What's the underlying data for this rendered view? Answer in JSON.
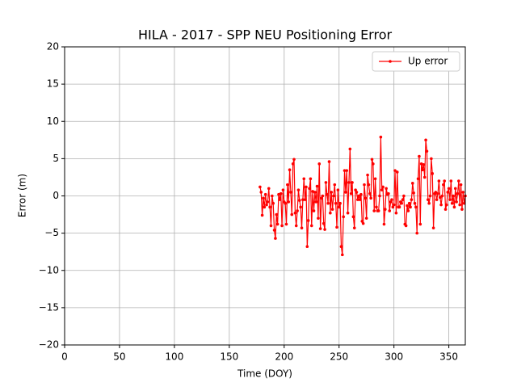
{
  "chart_data": {
    "type": "line",
    "title": "HILA - 2017 - SPP NEU Positioning Error",
    "xlabel": "Time (DOY)",
    "ylabel": "Error (m)",
    "xlim": [
      0,
      365
    ],
    "ylim": [
      -20,
      20
    ],
    "xticks": [
      0,
      50,
      100,
      150,
      200,
      250,
      300,
      350
    ],
    "yticks": [
      {
        "value": -20,
        "label": "−20"
      },
      {
        "value": -15,
        "label": "−15"
      },
      {
        "value": -10,
        "label": "−10"
      },
      {
        "value": -5,
        "label": "−5"
      },
      0,
      5,
      10,
      15,
      20
    ],
    "grid": true,
    "legend": "upper right",
    "series": [
      {
        "name": "Up error",
        "color": "#ff0000",
        "x": [
          178,
          179,
          180,
          181,
          182,
          183,
          184,
          185,
          186,
          187,
          188,
          189,
          190,
          191,
          192,
          193,
          194,
          195,
          196,
          197,
          198,
          199,
          200,
          201,
          202,
          203,
          204,
          205,
          206,
          207,
          208,
          209,
          210,
          211,
          212,
          213,
          214,
          215,
          216,
          217,
          218,
          219,
          220,
          221,
          222,
          223,
          224,
          225,
          226,
          227,
          228,
          229,
          230,
          231,
          232,
          233,
          234,
          235,
          236,
          237,
          238,
          239,
          240,
          241,
          242,
          243,
          244,
          245,
          246,
          247,
          248,
          249,
          250,
          251,
          252,
          253,
          254,
          255,
          256,
          257,
          258,
          259,
          260,
          261,
          262,
          263,
          264,
          265,
          266,
          267,
          268,
          269,
          270,
          271,
          272,
          273,
          274,
          275,
          276,
          277,
          278,
          279,
          280,
          281,
          282,
          283,
          284,
          285,
          286,
          287,
          288,
          289,
          290,
          291,
          292,
          293,
          294,
          295,
          296,
          297,
          298,
          299,
          300,
          301,
          302,
          303,
          304,
          305,
          306,
          307,
          308,
          309,
          310,
          311,
          312,
          313,
          314,
          315,
          316,
          317,
          318,
          319,
          320,
          321,
          322,
          323,
          324,
          325,
          326,
          327,
          328,
          329,
          330,
          331,
          332,
          333,
          334,
          335,
          336,
          337,
          338,
          339,
          340,
          341,
          342,
          343,
          344,
          345,
          346,
          347,
          348,
          349,
          350,
          351,
          352,
          353,
          354,
          355,
          356,
          357,
          358,
          359,
          360,
          361,
          362,
          363,
          364,
          365
        ],
        "values": [
          1.2,
          0.5,
          -2.6,
          -0.3,
          -1.5,
          0.2,
          -1.2,
          -0.8,
          1.0,
          -1.5,
          -4.0,
          0.0,
          -1.0,
          -4.6,
          -5.7,
          -2.5,
          -3.8,
          0.2,
          -0.5,
          0.3,
          -4.0,
          0.8,
          -0.8,
          -1.0,
          -3.8,
          1.5,
          -0.8,
          3.5,
          0.5,
          -2.5,
          4.3,
          4.9,
          -2.3,
          -4.0,
          -2.0,
          0.8,
          -0.6,
          -1.5,
          -4.3,
          -0.5,
          2.3,
          -0.5,
          1.2,
          -6.8,
          -3.3,
          1.0,
          2.3,
          -4.0,
          0.6,
          -2.0,
          0.5,
          -0.8,
          1.3,
          -3.0,
          4.3,
          -4.4,
          -0.3,
          0.0,
          -3.7,
          -4.5,
          1.8,
          0.2,
          -1.0,
          4.6,
          -2.3,
          0.5,
          -1.8,
          0.0,
          1.5,
          -1.0,
          -4.2,
          0.8,
          -1.5,
          -1.0,
          -6.8,
          -7.9,
          -2.8,
          3.4,
          0.5,
          3.4,
          -2.3,
          1.8,
          6.3,
          0.3,
          1.8,
          -2.8,
          -4.3,
          0.8,
          0.5,
          -0.5,
          0.0,
          -0.5,
          0.2,
          -3.4,
          -3.7,
          1.5,
          -0.3,
          -3.0,
          2.8,
          1.5,
          0.3,
          -0.3,
          4.9,
          4.3,
          -2.0,
          2.3,
          -1.5,
          -2.0,
          -2.0,
          0.0,
          7.9,
          0.8,
          1.2,
          -3.8,
          -1.8,
          1.0,
          0.2,
          0.3,
          -2.0,
          -0.8,
          -0.5,
          -1.5,
          -1.2,
          3.4,
          -2.3,
          3.2,
          -1.5,
          -1.5,
          -0.8,
          -1.0,
          -0.5,
          0.0,
          -3.8,
          -4.0,
          -1.3,
          -2.0,
          -1.0,
          -1.5,
          -0.5,
          1.7,
          0.4,
          -1.0,
          -1.5,
          -5.0,
          2.3,
          5.3,
          -3.8,
          4.3,
          3.5,
          4.2,
          2.5,
          7.5,
          6.0,
          -0.5,
          -1.0,
          0.0,
          5.0,
          3.0,
          -4.3,
          0.3,
          0.5,
          -0.5,
          0.3,
          2.0,
          -0.2,
          -1.2,
          0.0,
          1.5,
          2.0,
          -1.8,
          -1.2,
          0.5,
          1.0,
          -0.5,
          2.0,
          -1.0,
          0.0,
          -1.5,
          1.0,
          -0.8,
          0.3,
          2.0,
          -1.2,
          1.5,
          -1.8,
          0.5,
          -1.0,
          0.0
        ]
      }
    ]
  }
}
